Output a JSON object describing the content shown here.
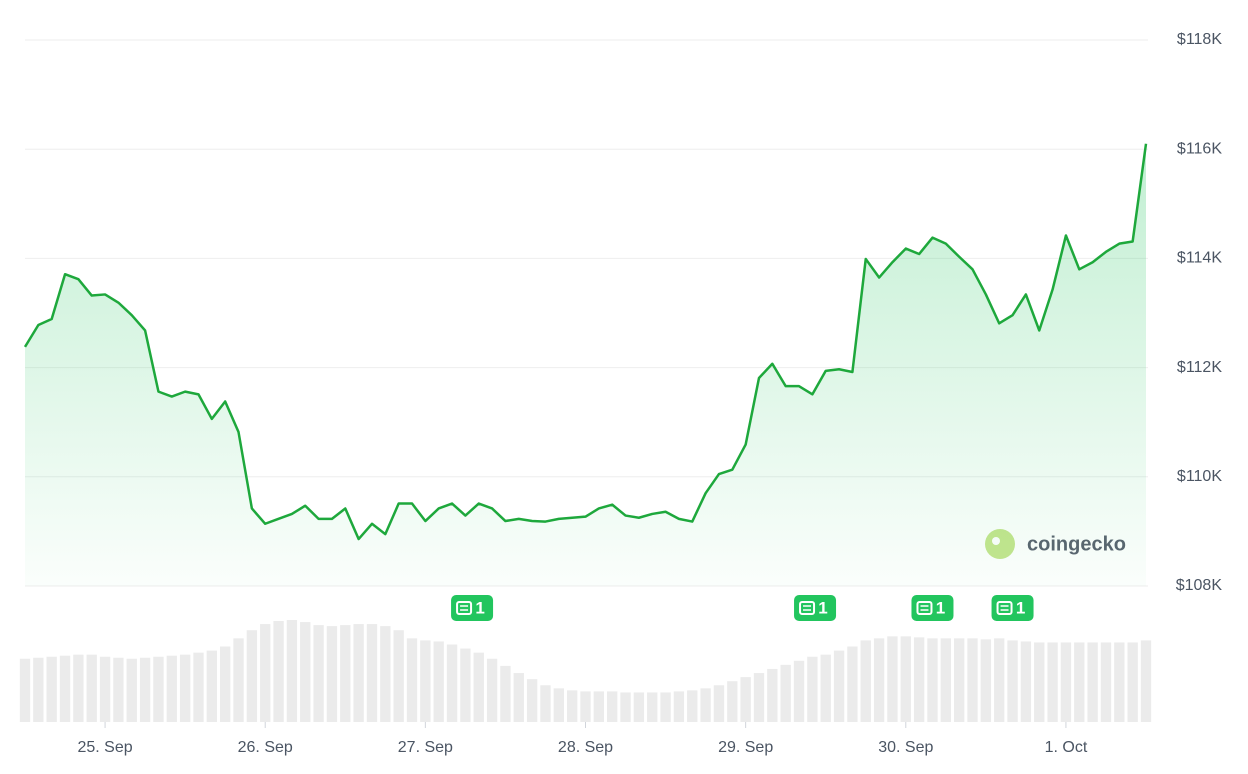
{
  "chart_data": {
    "type": "line",
    "categories": [
      null,
      null,
      null,
      null,
      null,
      null,
      "25. Sep",
      null,
      null,
      null,
      null,
      null,
      null,
      null,
      null,
      null,
      null,
      null,
      "26. Sep",
      null,
      null,
      null,
      null,
      null,
      null,
      null,
      null,
      null,
      null,
      null,
      "27. Sep",
      null,
      null,
      null,
      null,
      null,
      null,
      null,
      null,
      null,
      null,
      null,
      "28. Sep",
      null,
      null,
      null,
      null,
      null,
      null,
      null,
      null,
      null,
      null,
      null,
      "29. Sep",
      null,
      null,
      null,
      null,
      null,
      null,
      null,
      null,
      null,
      null,
      null,
      "30. Sep",
      null,
      null,
      null,
      null,
      null,
      null,
      null,
      null,
      null,
      null,
      null,
      "1. Oct",
      null,
      null,
      null,
      null,
      null,
      null
    ],
    "series": [
      {
        "color": "#1ea83c",
        "values": [
          112380,
          112780,
          112890,
          113710,
          113620,
          113320,
          113340,
          113190,
          112960,
          112680,
          111560,
          111470,
          111560,
          111510,
          111060,
          111380,
          110820,
          109420,
          109140,
          109230,
          109320,
          109470,
          109230,
          109230,
          109420,
          108860,
          109140,
          108950,
          109510,
          109510,
          109190,
          109420,
          109510,
          109290,
          109510,
          109420,
          109190,
          109230,
          109190,
          109180,
          109230,
          109250,
          109270,
          109420,
          109490,
          109290,
          109250,
          109320,
          109360,
          109230,
          109180,
          109700,
          110050,
          110130,
          110590,
          111810,
          112070,
          111660,
          111660,
          111510,
          111940,
          111970,
          111920,
          113990,
          113650,
          113930,
          114180,
          114080,
          114380,
          114270,
          114030,
          113800,
          113340,
          112810,
          112960,
          113340,
          112680,
          113430,
          114420,
          113800,
          113930,
          114120,
          114270,
          114310,
          116100
        ]
      }
    ],
    "volume": {
      "color": "#ebebeb",
      "values": [
        62,
        63,
        64,
        65,
        66,
        66,
        64,
        63,
        62,
        63,
        64,
        65,
        66,
        68,
        70,
        74,
        82,
        90,
        96,
        99,
        100,
        98,
        95,
        94,
        95,
        96,
        96,
        94,
        90,
        82,
        80,
        79,
        76,
        72,
        68,
        62,
        55,
        48,
        42,
        36,
        33,
        31,
        30,
        30,
        30,
        29,
        29,
        29,
        29,
        30,
        31,
        33,
        36,
        40,
        44,
        48,
        52,
        56,
        60,
        64,
        66,
        70,
        74,
        80,
        82,
        84,
        84,
        83,
        82,
        82,
        82,
        82,
        81,
        82,
        80,
        79,
        78,
        78,
        78,
        78,
        78,
        78,
        78,
        78,
        80
      ]
    },
    "ylim": [
      108000,
      118000
    ],
    "yticks": [
      {
        "value": 108000,
        "label": "$108K"
      },
      {
        "value": 110000,
        "label": "$110K"
      },
      {
        "value": 112000,
        "label": "$112K"
      },
      {
        "value": 114000,
        "label": "$114K"
      },
      {
        "value": 116000,
        "label": "$116K"
      },
      {
        "value": 118000,
        "label": "$118K"
      }
    ],
    "grid": true,
    "news": [
      {
        "at": 33.5,
        "label": "1"
      },
      {
        "at": 59.2,
        "label": "1"
      },
      {
        "at": 68,
        "label": "1"
      },
      {
        "at": 74,
        "label": "1"
      }
    ],
    "watermark": "coingecko"
  }
}
